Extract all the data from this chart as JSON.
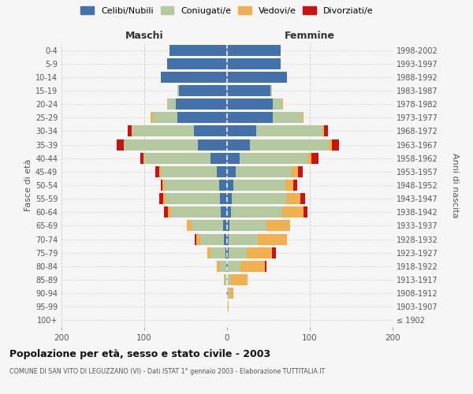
{
  "age_groups": [
    "100+",
    "95-99",
    "90-94",
    "85-89",
    "80-84",
    "75-79",
    "70-74",
    "65-69",
    "60-64",
    "55-59",
    "50-54",
    "45-49",
    "40-44",
    "35-39",
    "30-34",
    "25-29",
    "20-24",
    "15-19",
    "10-14",
    "5-9",
    "0-4"
  ],
  "birth_years": [
    "≤ 1902",
    "1903-1907",
    "1908-1912",
    "1913-1917",
    "1918-1922",
    "1923-1927",
    "1928-1932",
    "1933-1937",
    "1938-1942",
    "1943-1947",
    "1948-1952",
    "1953-1957",
    "1958-1962",
    "1963-1967",
    "1968-1972",
    "1973-1977",
    "1978-1982",
    "1983-1987",
    "1988-1992",
    "1993-1997",
    "1998-2002"
  ],
  "maschi": {
    "celibi": [
      0,
      0,
      0,
      0,
      1,
      2,
      4,
      5,
      8,
      9,
      10,
      12,
      20,
      35,
      40,
      60,
      62,
      58,
      80,
      72,
      70
    ],
    "coniugati": [
      0,
      0,
      1,
      3,
      8,
      18,
      28,
      38,
      60,
      65,
      65,
      68,
      80,
      90,
      75,
      30,
      10,
      2,
      0,
      0,
      0
    ],
    "vedovi": [
      0,
      0,
      0,
      1,
      3,
      4,
      5,
      6,
      3,
      3,
      3,
      2,
      1,
      0,
      0,
      2,
      0,
      0,
      0,
      0,
      0
    ],
    "divorziati": [
      0,
      0,
      0,
      0,
      0,
      0,
      2,
      0,
      5,
      5,
      2,
      5,
      4,
      8,
      5,
      0,
      0,
      0,
      0,
      0,
      0
    ]
  },
  "femmine": {
    "nubili": [
      0,
      0,
      1,
      0,
      1,
      2,
      2,
      3,
      5,
      6,
      8,
      10,
      15,
      28,
      35,
      55,
      55,
      52,
      72,
      65,
      65
    ],
    "coniugate": [
      0,
      1,
      2,
      5,
      15,
      22,
      35,
      45,
      62,
      65,
      62,
      68,
      82,
      95,
      80,
      35,
      12,
      2,
      0,
      0,
      0
    ],
    "vedove": [
      0,
      1,
      5,
      20,
      30,
      30,
      35,
      28,
      25,
      18,
      10,
      8,
      5,
      4,
      2,
      2,
      1,
      0,
      0,
      0,
      0
    ],
    "divorziate": [
      0,
      0,
      0,
      0,
      2,
      5,
      0,
      0,
      5,
      5,
      5,
      5,
      8,
      8,
      5,
      0,
      0,
      0,
      0,
      0,
      0
    ]
  },
  "colors": {
    "celibi": "#4472a8",
    "coniugati": "#b5c9a0",
    "vedovi": "#f0b050",
    "divorziati": "#cc1111"
  },
  "xlim": 200,
  "title": "Popolazione per età, sesso e stato civile - 2003",
  "subtitle": "COMUNE DI SAN VITO DI LEGUZZANO (VI) - Dati ISTAT 1° gennaio 2003 - Elaborazione TUTTITALIA.IT",
  "ylabel_left": "Fasce di età",
  "ylabel_right": "Anni di nascita",
  "xlabel_maschi": "Maschi",
  "xlabel_femmine": "Femmine",
  "legend_labels": [
    "Celibi/Nubili",
    "Coniugati/e",
    "Vedovi/e",
    "Divorziati/e"
  ],
  "background_color": "#f5f5f5"
}
